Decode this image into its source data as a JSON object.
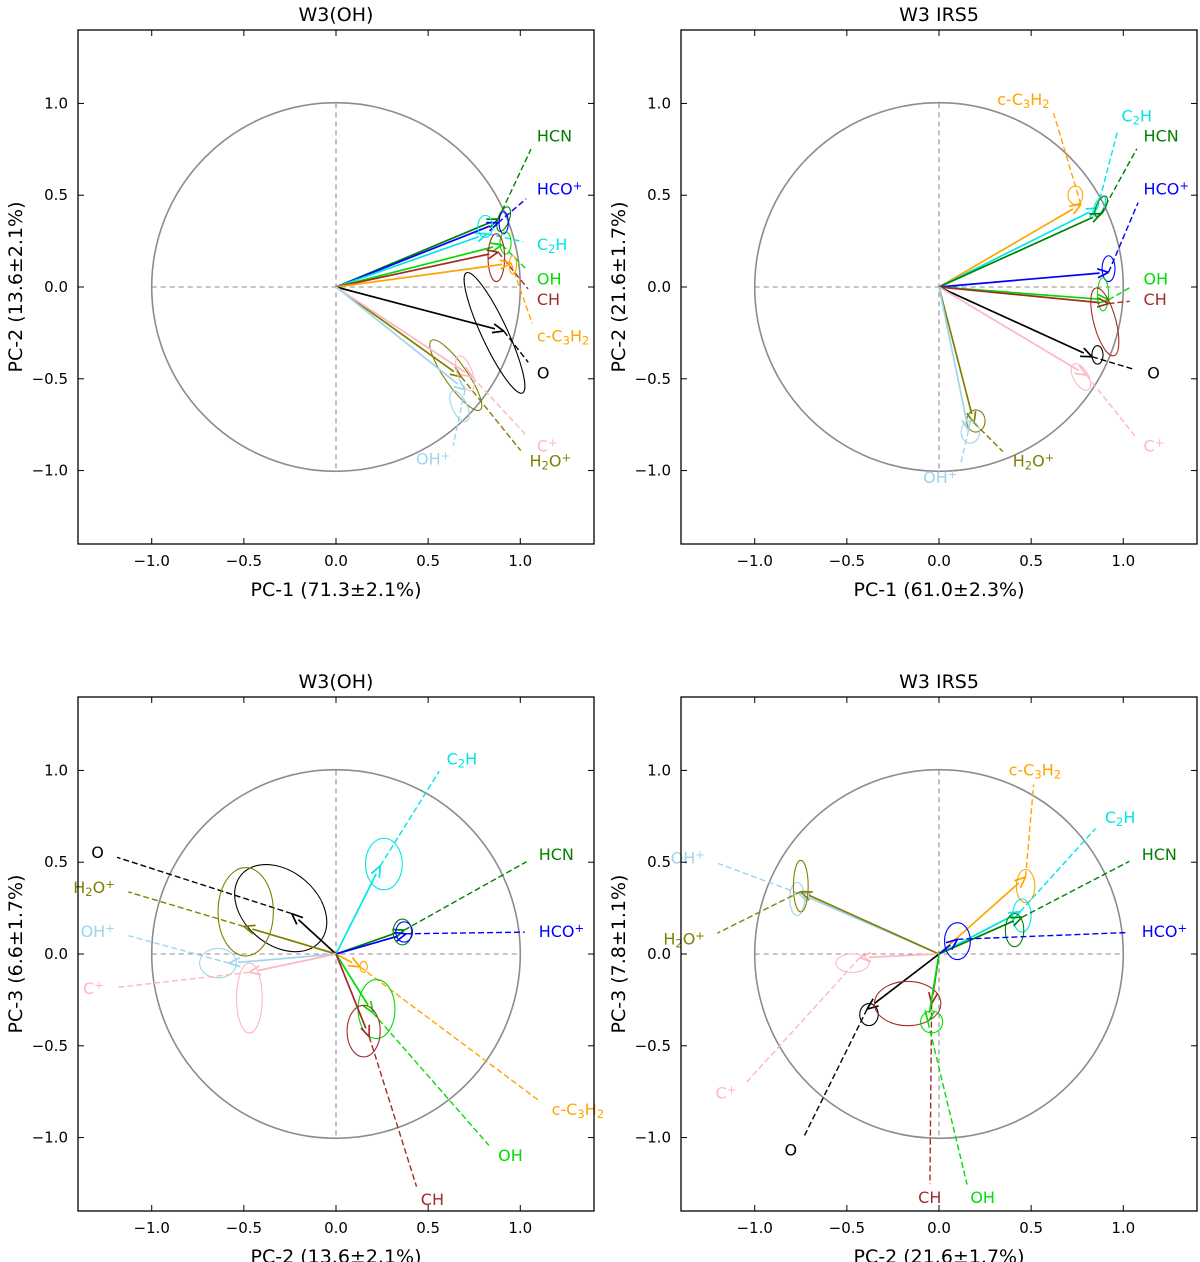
{
  "chart_data": [
    {
      "type": "scatter",
      "subtype": "pca-loading-biplot",
      "title": "W3(OH)",
      "xlabel": "PC-1 (71.3±2.1%)",
      "ylabel": "PC-2 (13.6±2.1%)",
      "xlim": [
        -1.4,
        1.4
      ],
      "ylim": [
        -1.4,
        1.4
      ],
      "xticks": [
        "−1.0",
        "−0.5",
        "0.0",
        "0.5",
        "1.0"
      ],
      "yticks": [
        "−1.0",
        "−0.5",
        "0.0",
        "0.5",
        "1.0"
      ],
      "unit_circle_radius": 1.0,
      "series": [
        {
          "name": "HCN",
          "color": "#008000",
          "x": 0.88,
          "y": 0.37,
          "ellipse": {
            "cx": 0.91,
            "cy": 0.37,
            "rx": 0.03,
            "ry": 0.07,
            "angle": -20
          },
          "label_pos": [
            1.09,
            0.82
          ]
        },
        {
          "name": "HCO⁺",
          "color": "#0000ff",
          "x": 0.88,
          "y": 0.35,
          "ellipse": {
            "cx": 0.91,
            "cy": 0.35,
            "rx": 0.025,
            "ry": 0.06,
            "angle": 0
          },
          "label_pos": [
            1.09,
            0.53
          ]
        },
        {
          "name": "C₂H",
          "color": "#00e5e5",
          "x": 0.82,
          "y": 0.29,
          "ellipse": {
            "cx": 0.81,
            "cy": 0.33,
            "rx": 0.04,
            "ry": 0.06,
            "angle": 0
          },
          "label_pos": [
            1.09,
            0.23
          ]
        },
        {
          "name": "OH",
          "color": "#00dd00",
          "x": 0.9,
          "y": 0.23,
          "ellipse": {
            "cx": 0.92,
            "cy": 0.24,
            "rx": 0.03,
            "ry": 0.06,
            "angle": 0
          },
          "label_pos": [
            1.09,
            0.04
          ]
        },
        {
          "name": "CH",
          "color": "#a52a2a",
          "x": 0.88,
          "y": 0.19,
          "ellipse": {
            "cx": 0.87,
            "cy": 0.16,
            "rx": 0.045,
            "ry": 0.13,
            "angle": 0
          },
          "label_pos": [
            1.09,
            -0.07
          ]
        },
        {
          "name": "c-C₃H₂",
          "color": "#ffa500",
          "x": 0.95,
          "y": 0.13,
          "ellipse": {
            "cx": 0.96,
            "cy": 0.12,
            "rx": 0.02,
            "ry": 0.05,
            "angle": 0
          },
          "label_pos": [
            1.09,
            -0.27
          ]
        },
        {
          "name": "O",
          "color": "#000000",
          "x": 0.91,
          "y": -0.24,
          "ellipse": {
            "cx": 0.86,
            "cy": -0.25,
            "rx": 0.07,
            "ry": 0.36,
            "angle": 25
          },
          "label_pos": [
            1.09,
            -0.47
          ]
        },
        {
          "name": "H₂O⁺",
          "color": "#808000",
          "x": 0.68,
          "y": -0.49,
          "ellipse": {
            "cx": 0.65,
            "cy": -0.48,
            "rx": 0.06,
            "ry": 0.23,
            "angle": 35
          },
          "label_pos": [
            1.05,
            -0.95
          ]
        },
        {
          "name": "C⁺",
          "color": "#ffb6c1",
          "x": 0.74,
          "y": -0.49,
          "ellipse": {
            "cx": 0.7,
            "cy": -0.47,
            "rx": 0.04,
            "ry": 0.1,
            "angle": 20
          },
          "label_pos": [
            1.09,
            -0.87
          ]
        },
        {
          "name": "OH⁺",
          "color": "#9fd4ed",
          "x": 0.7,
          "y": -0.56,
          "ellipse": {
            "cx": 0.67,
            "cy": -0.65,
            "rx": 0.04,
            "ry": 0.09,
            "angle": 25
          },
          "label_pos": [
            0.62,
            -0.94
          ]
        }
      ]
    },
    {
      "type": "scatter",
      "subtype": "pca-loading-biplot",
      "title": "W3 IRS5",
      "xlabel": "PC-1 (61.0±2.3%)",
      "ylabel": "PC-2 (21.6±1.7%)",
      "xlim": [
        -1.4,
        1.4
      ],
      "ylim": [
        -1.4,
        1.4
      ],
      "xticks": [
        "−1.0",
        "−0.5",
        "0.0",
        "0.5",
        "1.0"
      ],
      "yticks": [
        "−1.0",
        "−0.5",
        "0.0",
        "0.5",
        "1.0"
      ],
      "unit_circle_radius": 1.0,
      "series": [
        {
          "name": "c-C₃H₂",
          "color": "#ffa500",
          "x": 0.77,
          "y": 0.45,
          "ellipse": {
            "cx": 0.74,
            "cy": 0.5,
            "rx": 0.04,
            "ry": 0.05,
            "angle": 0
          },
          "label_pos": [
            0.6,
            1.02
          ]
        },
        {
          "name": "C₂H",
          "color": "#00e5e5",
          "x": 0.86,
          "y": 0.43,
          "ellipse": {
            "cx": 0.87,
            "cy": 0.44,
            "rx": 0.025,
            "ry": 0.06,
            "angle": -25
          },
          "label_pos": [
            0.99,
            0.93
          ]
        },
        {
          "name": "HCN",
          "color": "#008000",
          "x": 0.88,
          "y": 0.4,
          "ellipse": {
            "cx": 0.88,
            "cy": 0.44,
            "rx": 0.025,
            "ry": 0.06,
            "angle": -25
          },
          "label_pos": [
            1.11,
            0.82
          ]
        },
        {
          "name": "HCO⁺",
          "color": "#0000ff",
          "x": 0.92,
          "y": 0.08,
          "ellipse": {
            "cx": 0.92,
            "cy": 0.1,
            "rx": 0.035,
            "ry": 0.07,
            "angle": 0
          },
          "label_pos": [
            1.11,
            0.53
          ]
        },
        {
          "name": "OH",
          "color": "#00dd00",
          "x": 0.92,
          "y": -0.07,
          "ellipse": {
            "cx": 0.89,
            "cy": -0.04,
            "rx": 0.03,
            "ry": 0.09,
            "angle": 0
          },
          "label_pos": [
            1.11,
            0.04
          ]
        },
        {
          "name": "CH",
          "color": "#a52a2a",
          "x": 0.92,
          "y": -0.09,
          "ellipse": {
            "cx": 0.9,
            "cy": -0.19,
            "rx": 0.06,
            "ry": 0.19,
            "angle": 15
          },
          "label_pos": [
            1.11,
            -0.07
          ]
        },
        {
          "name": "O",
          "color": "#000000",
          "x": 0.83,
          "y": -0.38,
          "ellipse": {
            "cx": 0.86,
            "cy": -0.37,
            "rx": 0.03,
            "ry": 0.05,
            "angle": 0
          },
          "label_pos": [
            1.13,
            -0.47
          ]
        },
        {
          "name": "C⁺",
          "color": "#ffb6c1",
          "x": 0.8,
          "y": -0.48,
          "ellipse": {
            "cx": 0.77,
            "cy": -0.49,
            "rx": 0.04,
            "ry": 0.08,
            "angle": 30
          },
          "label_pos": [
            1.11,
            -0.87
          ]
        },
        {
          "name": "H₂O⁺",
          "color": "#808000",
          "x": 0.19,
          "y": -0.74,
          "ellipse": {
            "cx": 0.2,
            "cy": -0.73,
            "rx": 0.05,
            "ry": 0.06,
            "angle": 0
          },
          "label_pos": [
            0.4,
            -0.95
          ]
        },
        {
          "name": "OH⁺",
          "color": "#9fd4ed",
          "x": 0.16,
          "y": -0.78,
          "ellipse": {
            "cx": 0.17,
            "cy": -0.79,
            "rx": 0.05,
            "ry": 0.06,
            "angle": 0
          },
          "label_pos": [
            0.1,
            -1.04
          ]
        }
      ]
    },
    {
      "type": "scatter",
      "subtype": "pca-loading-biplot",
      "title": "W3(OH)",
      "xlabel": "PC-2 (13.6±2.1%)",
      "ylabel": "PC-3 (6.6±1.7%)",
      "xlim": [
        -1.4,
        1.4
      ],
      "ylim": [
        -1.4,
        1.4
      ],
      "xticks": [
        "−1.0",
        "−0.5",
        "0.0",
        "0.5",
        "1.0"
      ],
      "yticks": [
        "−1.0",
        "−0.5",
        "0.0",
        "0.5",
        "1.0"
      ],
      "unit_circle_radius": 1.0,
      "series": [
        {
          "name": "C₂H",
          "color": "#00e5e5",
          "x": 0.24,
          "y": 0.48,
          "ellipse": {
            "cx": 0.26,
            "cy": 0.49,
            "rx": 0.1,
            "ry": 0.14,
            "angle": 0
          },
          "label_pos": [
            0.6,
            1.06
          ]
        },
        {
          "name": "HCN",
          "color": "#008000",
          "x": 0.37,
          "y": 0.13,
          "ellipse": {
            "cx": 0.36,
            "cy": 0.12,
            "rx": 0.05,
            "ry": 0.07,
            "angle": 0
          },
          "label_pos": [
            1.1,
            0.54
          ]
        },
        {
          "name": "HCO⁺",
          "color": "#0000ff",
          "x": 0.38,
          "y": 0.11,
          "ellipse": {
            "cx": 0.37,
            "cy": 0.12,
            "rx": 0.045,
            "ry": 0.055,
            "angle": 0
          },
          "label_pos": [
            1.1,
            0.12
          ]
        },
        {
          "name": "O",
          "color": "#000000",
          "x": -0.24,
          "y": 0.22,
          "ellipse": {
            "cx": -0.3,
            "cy": 0.25,
            "rx": 0.2,
            "ry": 0.28,
            "angle": 50
          },
          "label_pos": [
            -1.26,
            0.55
          ]
        },
        {
          "name": "H₂O⁺",
          "color": "#808000",
          "x": -0.5,
          "y": 0.15,
          "ellipse": {
            "cx": -0.49,
            "cy": 0.23,
            "rx": 0.15,
            "ry": 0.24,
            "angle": 0
          },
          "label_pos": [
            -1.2,
            0.36
          ]
        },
        {
          "name": "OH⁺",
          "color": "#9fd4ed",
          "x": -0.58,
          "y": -0.05,
          "ellipse": {
            "cx": -0.64,
            "cy": -0.05,
            "rx": 0.1,
            "ry": 0.08,
            "angle": 0
          },
          "label_pos": [
            -1.2,
            0.12
          ]
        },
        {
          "name": "C⁺",
          "color": "#ffb6c1",
          "x": -0.47,
          "y": -0.1,
          "ellipse": {
            "cx": -0.47,
            "cy": -0.24,
            "rx": 0.07,
            "ry": 0.19,
            "angle": 0
          },
          "label_pos": [
            -1.26,
            -0.19
          ]
        },
        {
          "name": "c-C₃H₂",
          "color": "#ffa500",
          "x": 0.13,
          "y": -0.07,
          "ellipse": {
            "cx": 0.15,
            "cy": -0.07,
            "rx": 0.02,
            "ry": 0.03,
            "angle": 0
          },
          "label_pos": [
            1.17,
            -0.85
          ]
        },
        {
          "name": "OH",
          "color": "#00dd00",
          "x": 0.2,
          "y": -0.32,
          "ellipse": {
            "cx": 0.22,
            "cy": -0.3,
            "rx": 0.1,
            "ry": 0.16,
            "angle": 0
          },
          "label_pos": [
            0.88,
            -1.1
          ]
        },
        {
          "name": "CH",
          "color": "#a52a2a",
          "x": 0.18,
          "y": -0.45,
          "ellipse": {
            "cx": 0.15,
            "cy": -0.42,
            "rx": 0.09,
            "ry": 0.14,
            "angle": 0
          },
          "label_pos": [
            0.46,
            -1.34
          ]
        }
      ]
    },
    {
      "type": "scatter",
      "subtype": "pca-loading-biplot",
      "title": "W3 IRS5",
      "xlabel": "PC-2 (21.6±1.7%)",
      "ylabel": "PC-3 (7.8±1.1%)",
      "xlim": [
        -1.4,
        1.4
      ],
      "ylim": [
        -1.4,
        1.4
      ],
      "xticks": [
        "−1.0",
        "−0.5",
        "0.0",
        "0.5",
        "1.0"
      ],
      "yticks": [
        "−1.0",
        "−0.5",
        "0.0",
        "0.5",
        "1.0"
      ],
      "unit_circle_radius": 1.0,
      "series": [
        {
          "name": "c-C₃H₂",
          "color": "#ffa500",
          "x": 0.47,
          "y": 0.42,
          "ellipse": {
            "cx": 0.47,
            "cy": 0.37,
            "rx": 0.05,
            "ry": 0.09,
            "angle": 0
          },
          "label_pos": [
            0.52,
            1.0
          ]
        },
        {
          "name": "C₂H",
          "color": "#00e5e5",
          "x": 0.44,
          "y": 0.23,
          "ellipse": {
            "cx": 0.45,
            "cy": 0.21,
            "rx": 0.05,
            "ry": 0.09,
            "angle": 0
          },
          "label_pos": [
            0.9,
            0.74
          ]
        },
        {
          "name": "HCN",
          "color": "#008000",
          "x": 0.45,
          "y": 0.2,
          "ellipse": {
            "cx": 0.41,
            "cy": 0.13,
            "rx": 0.05,
            "ry": 0.09,
            "angle": 0
          },
          "label_pos": [
            1.1,
            0.54
          ]
        },
        {
          "name": "HCO⁺",
          "color": "#0000ff",
          "x": 0.1,
          "y": 0.08,
          "ellipse": {
            "cx": 0.1,
            "cy": 0.07,
            "rx": 0.07,
            "ry": 0.1,
            "angle": 0
          },
          "label_pos": [
            1.1,
            0.12
          ]
        },
        {
          "name": "OH⁺",
          "color": "#9fd4ed",
          "x": -0.76,
          "y": 0.33,
          "ellipse": {
            "cx": -0.77,
            "cy": 0.3,
            "rx": 0.04,
            "ry": 0.09,
            "angle": 0
          },
          "label_pos": [
            -1.27,
            0.52
          ]
        },
        {
          "name": "H₂O⁺",
          "color": "#808000",
          "x": -0.75,
          "y": 0.34,
          "ellipse": {
            "cx": -0.75,
            "cy": 0.37,
            "rx": 0.04,
            "ry": 0.14,
            "angle": 0
          },
          "label_pos": [
            -1.27,
            0.08
          ]
        },
        {
          "name": "C⁺",
          "color": "#ffb6c1",
          "x": -0.43,
          "y": -0.02,
          "ellipse": {
            "cx": -0.47,
            "cy": -0.05,
            "rx": 0.09,
            "ry": 0.05,
            "angle": 0
          },
          "label_pos": [
            -1.1,
            -0.76
          ]
        },
        {
          "name": "O",
          "color": "#000000",
          "x": -0.39,
          "y": -0.3,
          "ellipse": {
            "cx": -0.38,
            "cy": -0.33,
            "rx": 0.05,
            "ry": 0.06,
            "angle": 0
          },
          "label_pos": [
            -0.77,
            -1.07
          ]
        },
        {
          "name": "CH",
          "color": "#a52a2a",
          "x": -0.04,
          "y": -0.27,
          "ellipse": {
            "cx": -0.17,
            "cy": -0.27,
            "rx": 0.18,
            "ry": 0.12,
            "angle": 0
          },
          "label_pos": [
            -0.05,
            -1.33
          ]
        },
        {
          "name": "OH",
          "color": "#00dd00",
          "x": -0.06,
          "y": -0.37,
          "ellipse": {
            "cx": -0.04,
            "cy": -0.37,
            "rx": 0.06,
            "ry": 0.06,
            "angle": 0
          },
          "label_pos": [
            0.17,
            -1.33
          ]
        }
      ]
    }
  ]
}
